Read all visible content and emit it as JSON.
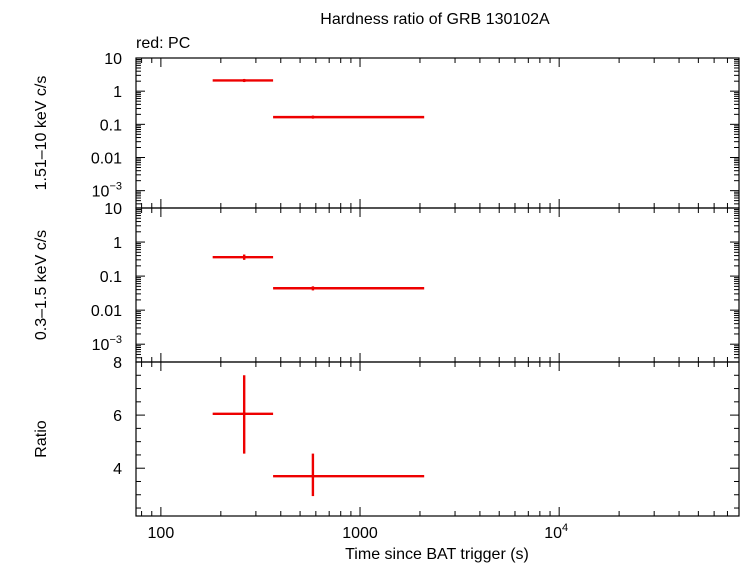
{
  "title": "Hardness ratio of GRB 130102A",
  "legend_note": "red: PC",
  "xlabel": "Time since BAT trigger (s)",
  "colors": {
    "series": "#ee0000",
    "axes": "#000000",
    "background": "#ffffff"
  },
  "chart_data": [
    {
      "type": "scatter",
      "panel": "top",
      "ylabel": "1.51–10 keV c/s",
      "xscale": "log",
      "yscale": "log",
      "xlim": [
        75,
        80000
      ],
      "ylim": [
        0.0003,
        10
      ],
      "x_ticks": [
        {
          "value": 100,
          "label": "100"
        },
        {
          "value": 1000,
          "label": "1000"
        },
        {
          "value": 10000,
          "label": "10",
          "sup": "4"
        }
      ],
      "y_ticks": [
        {
          "value": 10,
          "label": "10"
        },
        {
          "value": 1,
          "label": "1"
        },
        {
          "value": 0.1,
          "label": "0.1"
        },
        {
          "value": 0.01,
          "label": "0.01"
        },
        {
          "value": 0.001,
          "label": "10",
          "sup": "−3"
        }
      ],
      "series": [
        {
          "color": "#ee0000",
          "points": [
            {
              "x": 262,
              "xlo": 182,
              "xhi": 366,
              "y": 2.1,
              "ylo": 1.9,
              "yhi": 2.3
            },
            {
              "x": 580,
              "xlo": 366,
              "xhi": 2100,
              "y": 0.165,
              "ylo": 0.15,
              "yhi": 0.18
            }
          ]
        }
      ]
    },
    {
      "type": "scatter",
      "panel": "middle",
      "ylabel": "0.3–1.5 keV c/s",
      "xscale": "log",
      "yscale": "log",
      "xlim": [
        75,
        80000
      ],
      "ylim": [
        0.0003,
        10
      ],
      "x_ticks": [
        {
          "value": 100,
          "label": "100"
        },
        {
          "value": 1000,
          "label": "1000"
        },
        {
          "value": 10000,
          "label": "10",
          "sup": "4"
        }
      ],
      "y_ticks": [
        {
          "value": 10,
          "label": "10"
        },
        {
          "value": 1,
          "label": "1"
        },
        {
          "value": 0.1,
          "label": "0.1"
        },
        {
          "value": 0.01,
          "label": "0.01"
        },
        {
          "value": 0.001,
          "label": "10",
          "sup": "−3"
        }
      ],
      "series": [
        {
          "color": "#ee0000",
          "points": [
            {
              "x": 262,
              "xlo": 182,
              "xhi": 366,
              "y": 0.36,
              "ylo": 0.3,
              "yhi": 0.43
            },
            {
              "x": 580,
              "xlo": 366,
              "xhi": 2100,
              "y": 0.044,
              "ylo": 0.038,
              "yhi": 0.05
            }
          ]
        }
      ]
    },
    {
      "type": "scatter",
      "panel": "bottom",
      "ylabel": "Ratio",
      "xscale": "log",
      "yscale": "linear",
      "xlim": [
        75,
        80000
      ],
      "ylim": [
        2.2,
        8
      ],
      "x_ticks": [
        {
          "value": 100,
          "label": "100"
        },
        {
          "value": 1000,
          "label": "1000"
        },
        {
          "value": 10000,
          "label": "10",
          "sup": "4"
        }
      ],
      "y_ticks": [
        {
          "value": 8,
          "label": "8"
        },
        {
          "value": 6,
          "label": "6"
        },
        {
          "value": 4,
          "label": "4"
        }
      ],
      "series": [
        {
          "color": "#ee0000",
          "points": [
            {
              "x": 262,
              "xlo": 182,
              "xhi": 366,
              "y": 6.05,
              "ylo": 4.55,
              "yhi": 7.5
            },
            {
              "x": 580,
              "xlo": 366,
              "xhi": 2100,
              "y": 3.7,
              "ylo": 2.95,
              "yhi": 4.55
            }
          ]
        }
      ]
    }
  ]
}
